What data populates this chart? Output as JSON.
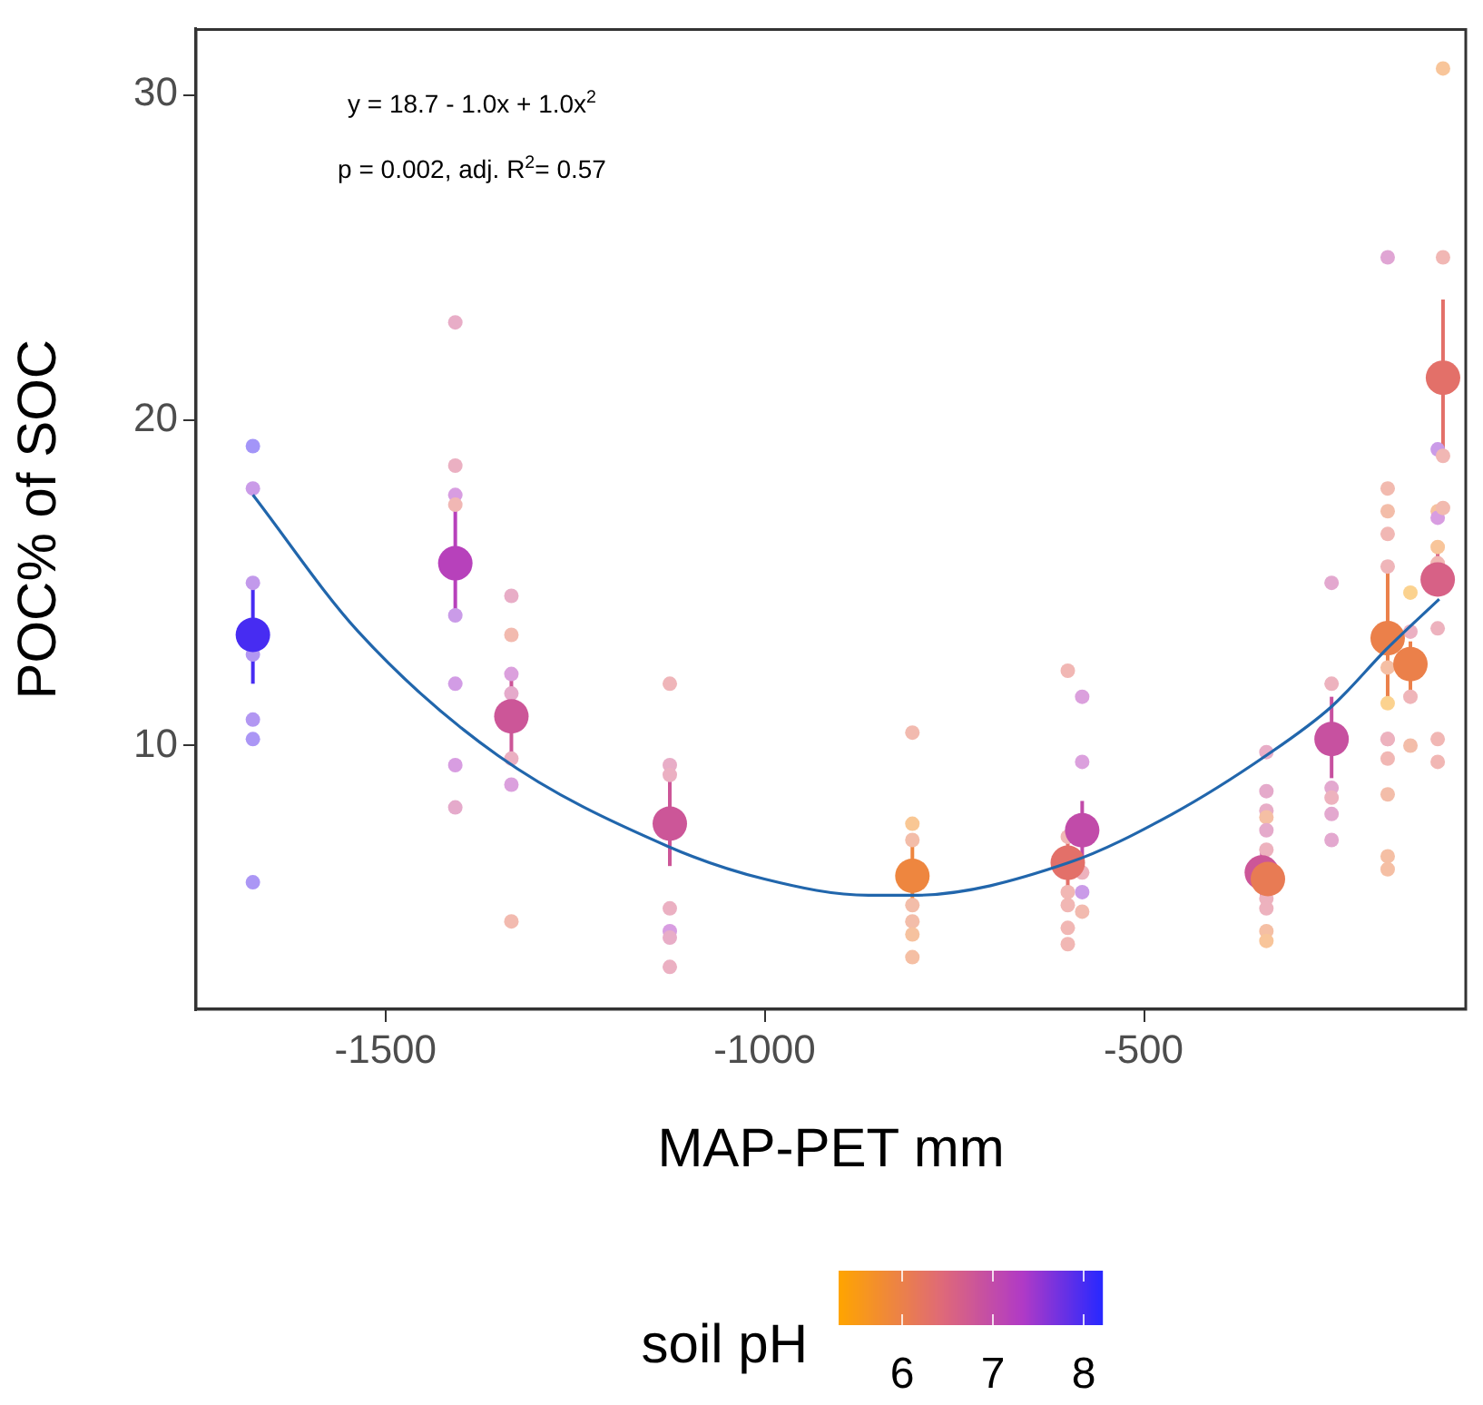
{
  "chart_data": {
    "type": "scatter",
    "xlabel": "MAP-PET mm",
    "ylabel": "POC% of SOC",
    "clabel": "soil pH",
    "clim": [
      5.3,
      8.2
    ],
    "cticks": [
      6,
      7,
      8
    ],
    "xlim": [
      -1750,
      -75
    ],
    "xticks": [
      -1500,
      -1000,
      -500
    ],
    "ylim": [
      1.9,
      32
    ],
    "yticks": [
      10,
      20,
      30
    ],
    "grid": false,
    "legend": false,
    "marker": "circle",
    "annotations": [
      "y = 18.7 - 1.0x + 1.0x$^{2}$",
      "p = 0.002, adj. R$^{2}$= 0.57"
    ],
    "series": [
      {
        "x": [
          -1675,
          -1675,
          -1675,
          -1675,
          -1675,
          -1675,
          -1675,
          -1408,
          -1408,
          -1408,
          -1408,
          -1408,
          -1408,
          -1408,
          -1408,
          -1334,
          -1334,
          -1334,
          -1334,
          -1334,
          -1334,
          -1334,
          -1125,
          -1125,
          -1125,
          -1125,
          -1125,
          -1125,
          -1125,
          -805,
          -805,
          -805,
          -805,
          -805,
          -805,
          -805,
          -600,
          -600,
          -600,
          -600,
          -600,
          -600,
          -581,
          -581,
          -581,
          -581,
          -581,
          -338,
          -338,
          -338,
          -338,
          -338,
          -338,
          -338,
          -338,
          -338,
          -338,
          -252,
          -252,
          -252,
          -252,
          -252,
          -252,
          -178,
          -178,
          -178,
          -178,
          -178,
          -178,
          -178,
          -178,
          -178,
          -178,
          -178,
          -178,
          -178,
          -148,
          -148,
          -148,
          -148,
          -112,
          -112,
          -112,
          -112,
          -112,
          -112,
          -112,
          -112,
          -105,
          -105,
          -105,
          -105
        ],
        "values": [
          19.2,
          17.9,
          15.0,
          12.8,
          10.8,
          10.2,
          5.8,
          23.0,
          18.6,
          17.7,
          17.4,
          14.0,
          11.9,
          9.4,
          8.1,
          14.6,
          13.4,
          12.2,
          11.6,
          9.6,
          8.8,
          4.6,
          11.9,
          9.4,
          9.1,
          5.0,
          4.3,
          4.1,
          3.2,
          10.4,
          7.6,
          7.1,
          5.1,
          4.6,
          4.2,
          3.5,
          12.3,
          7.2,
          5.5,
          5.1,
          4.4,
          3.9,
          11.5,
          9.5,
          6.1,
          5.5,
          4.9,
          9.8,
          8.6,
          8.0,
          7.8,
          7.4,
          6.8,
          5.3,
          5.0,
          4.3,
          4.0,
          15.0,
          11.9,
          8.7,
          8.4,
          7.9,
          7.1,
          25.0,
          17.9,
          17.2,
          16.5,
          15.5,
          12.4,
          11.3,
          10.2,
          10.2,
          9.6,
          8.5,
          6.6,
          6.2,
          14.7,
          13.5,
          11.5,
          10.0,
          19.1,
          17.2,
          17.0,
          16.1,
          15.6,
          13.6,
          10.2,
          9.5,
          30.8,
          25.0,
          18.9,
          17.3
        ],
        "colors": [
          "#a395f8",
          "#ca9be8",
          "#c299eb",
          "#b297f2",
          "#b297f2",
          "#ab96f5",
          "#ab96f5",
          "#e8adc7",
          "#ebb0c2",
          "#d89de1",
          "#f1b7b4",
          "#ca9be8",
          "#d29ce5",
          "#d89de1",
          "#e5aacb",
          "#e8adc7",
          "#f2baaf",
          "#dba0dd",
          "#e5aacb",
          "#ebb0c2",
          "#dba0dd",
          "#f2baaf",
          "#efb5b9",
          "#e8adc7",
          "#ebb0c2",
          "#ebb0c2",
          "#d89de1",
          "#e8adc7",
          "#ebb0c2",
          "#f2baaf",
          "#f9c794",
          "#f3bda9",
          "#f3bda9",
          "#f3bda9",
          "#f6c29f",
          "#f5bfa4",
          "#f1b7b4",
          "#f1b7b4",
          "#f1b7b4",
          "#f1b7b4",
          "#f1b7b4",
          "#f1b7b4",
          "#dba0dd",
          "#dba0dd",
          "#edb2be",
          "#ca9be8",
          "#f2baaf",
          "#e8adc7",
          "#e5aacb",
          "#e8adc7",
          "#f5bfa4",
          "#e5aacb",
          "#edb2be",
          "#edb2be",
          "#edb2be",
          "#f5bfa4",
          "#f8c59a",
          "#e3a8cf",
          "#edb2be",
          "#e3a8cf",
          "#edb2be",
          "#e3a8cf",
          "#e3a8cf",
          "#e0a5d4",
          "#f2baaf",
          "#f3bda9",
          "#f1b7b4",
          "#efb5b9",
          "#f5bfa4",
          "#fbd28f",
          "#e5aacb",
          "#edb2be",
          "#f1b7b4",
          "#f3bda9",
          "#f5bfa4",
          "#f5bfa4",
          "#fbd28f",
          "#ebb0c2",
          "#efb5b9",
          "#f3bda9",
          "#ca9be8",
          "#f6c29f",
          "#d89de1",
          "#f8c59a",
          "#f1b7b4",
          "#edb2be",
          "#f1b7b4",
          "#f1b7b4",
          "#f8c59a",
          "#f1b7b4",
          "#f1b7b4",
          "#f2baaf"
        ]
      },
      {
        "x": [
          -1675,
          -1408,
          -1334,
          -1125,
          -805,
          -600,
          -581,
          -344,
          -336,
          -252,
          -178,
          -148,
          -112,
          -105
        ],
        "values": [
          13.4,
          15.6,
          10.9,
          7.6,
          6.0,
          6.4,
          7.4,
          6.1,
          5.9,
          10.2,
          13.3,
          12.5,
          15.1,
          21.3
        ],
        "colors": [
          "#472cf2",
          "#b741bb",
          "#cc5698",
          "#cc5698",
          "#ee863f",
          "#e37069",
          "#c14ba9",
          "#cc5698",
          "#e87b54",
          "#c751a0",
          "#eb804a",
          "#eb804a",
          "#d76186",
          "#e37069"
        ],
        "errors": [
          [
            11.9,
            14.8
          ],
          [
            13.9,
            17.6
          ],
          [
            9.7,
            12.0
          ],
          [
            6.3,
            9.2
          ],
          [
            5.2,
            6.9
          ],
          [
            5.4,
            7.1
          ],
          [
            6.6,
            8.3
          ],
          [
            5.3,
            6.8
          ],
          null,
          [
            9.0,
            11.5
          ],
          [
            11.3,
            15.4
          ],
          [
            11.7,
            13.2
          ],
          [
            14.6,
            16.3
          ],
          [
            19.1,
            23.7
          ]
        ]
      },
      {
        "type": "line",
        "color": "#2166ac",
        "marker": "none",
        "x": [
          -1675,
          -1536,
          -1352,
          -1127,
          -1000,
          -863,
          -805,
          -599,
          -462,
          -338,
          -252,
          -178,
          -110
        ],
        "values": [
          17.7,
          13.5,
          9.7,
          6.9,
          5.9,
          5.4,
          5.4,
          6.4,
          7.9,
          9.7,
          11.2,
          13.0,
          14.5
        ]
      }
    ]
  }
}
